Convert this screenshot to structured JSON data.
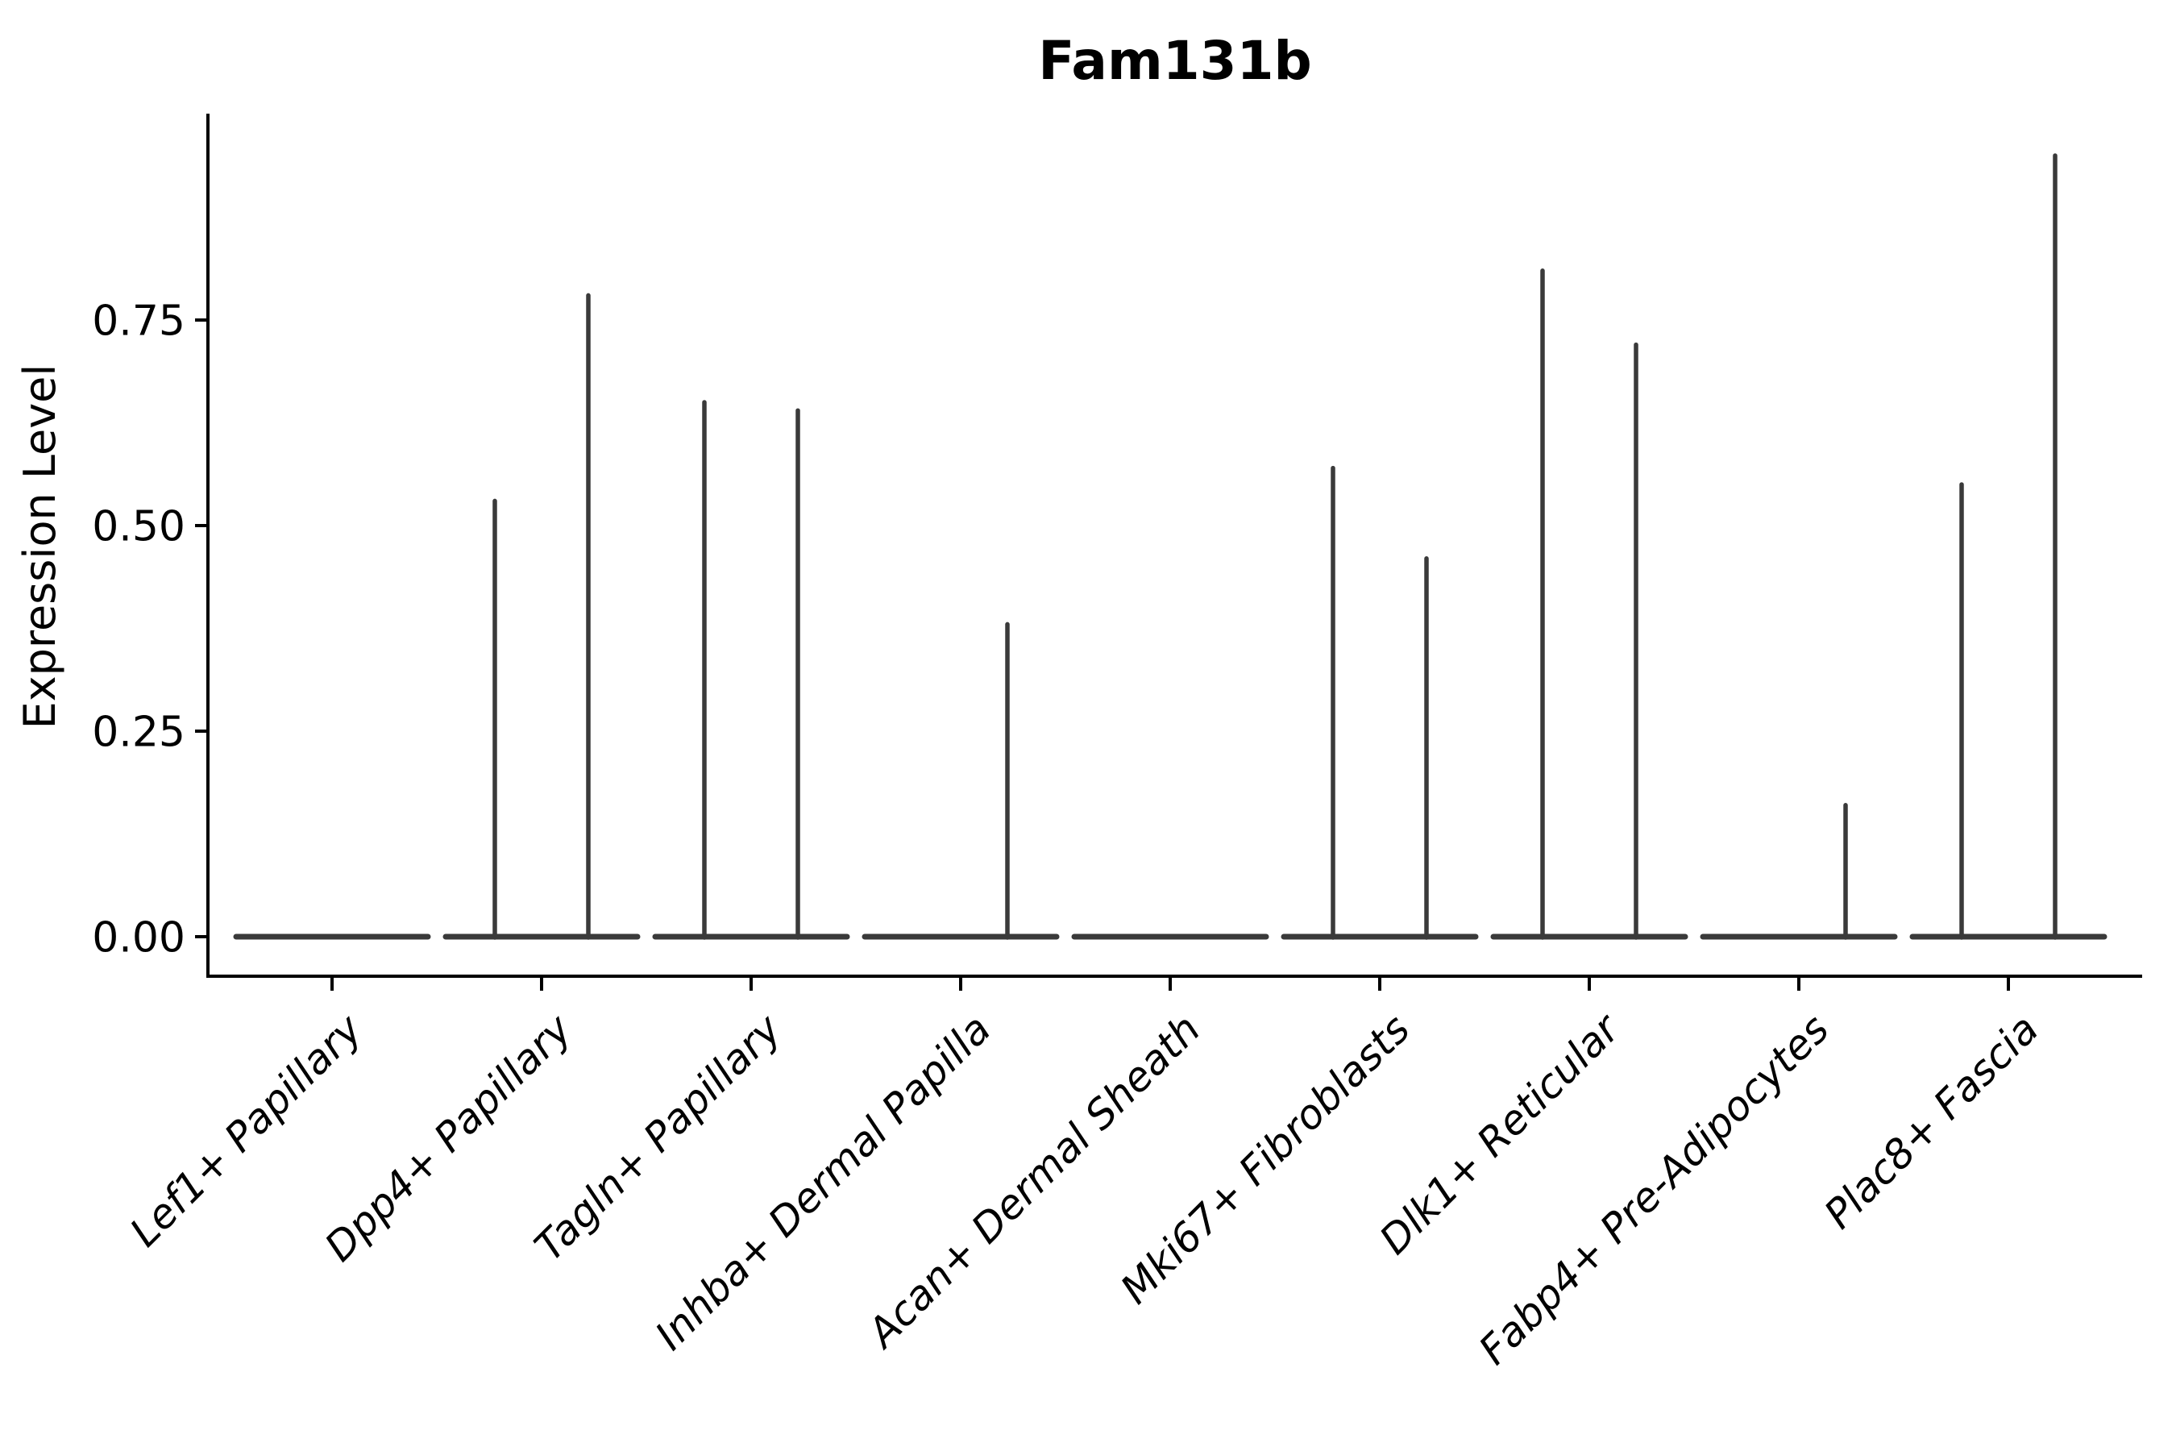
{
  "chart_data": {
    "type": "violin",
    "title": "Fam131b",
    "ylabel": "Expression Level",
    "xlabel": "",
    "grid": false,
    "legend_position": "none",
    "ylim": [
      0,
      1.0
    ],
    "ytick_values": [
      0,
      0.25,
      0.5,
      0.75
    ],
    "ytick_labels": [
      "0.00",
      "0.25",
      "0.50",
      "0.75"
    ],
    "violin_description": "Each category holds two needle-thin violins (left/right), collapsed to a flat density line at expression 0 with a thin vertical spike reaching the peak expression value; peak 0 means the violin is entirely flat.",
    "categories": [
      {
        "label": "Lef1+ Papillary",
        "left_peak": 0,
        "right_peak": 0
      },
      {
        "label": "Dpp4+ Papillary",
        "left_peak": 0.53,
        "right_peak": 0.78
      },
      {
        "label": "Tagln+ Papillary",
        "left_peak": 0.65,
        "right_peak": 0.64
      },
      {
        "label": "Inhba+ Dermal Papilla",
        "left_peak": 0,
        "right_peak": 0.38
      },
      {
        "label": "Acan+ Dermal Sheath",
        "left_peak": 0,
        "right_peak": 0
      },
      {
        "label": "Mki67+ Fibroblasts",
        "left_peak": 0.57,
        "right_peak": 0.46
      },
      {
        "label": "Dlk1+ Reticular",
        "left_peak": 0.81,
        "right_peak": 0.72
      },
      {
        "label": "Fabp4+ Pre-Adipocytes",
        "left_peak": 0,
        "right_peak": 0.16
      },
      {
        "label": "Plac8+ Fascia",
        "left_peak": 0.55,
        "right_peak": 0.95
      }
    ],
    "colors": {
      "violin_stroke": "#3a3a3a",
      "axis": "#000000",
      "text": "#000000",
      "background": "#ffffff"
    }
  }
}
